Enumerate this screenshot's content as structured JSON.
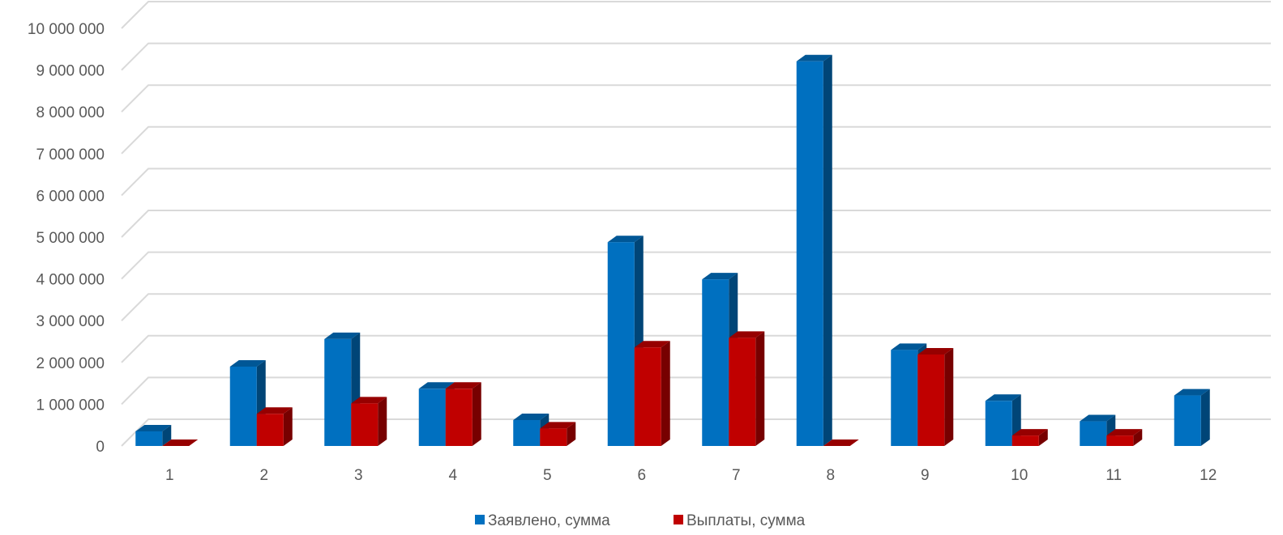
{
  "chart_data": {
    "type": "bar",
    "style": "3d-clustered-column",
    "categories": [
      "1",
      "2",
      "3",
      "4",
      "5",
      "6",
      "7",
      "8",
      "9",
      "10",
      "11",
      "12"
    ],
    "series": [
      {
        "name": "Заявлено, сумма",
        "color": "#0070C0",
        "values": [
          350000,
          1900000,
          2560000,
          1370000,
          620000,
          4880000,
          3990000,
          9210000,
          2300000,
          1080000,
          590000,
          1210000
        ]
      },
      {
        "name": "Выплаты, сумма",
        "color": "#C00000",
        "values": [
          0,
          770000,
          1020000,
          1370000,
          420000,
          2360000,
          2590000,
          0,
          2190000,
          250000,
          250000,
          null
        ]
      }
    ],
    "y_ticks": [
      "0",
      "1 000 000",
      "2 000 000",
      "3 000 000",
      "4 000 000",
      "5 000 000",
      "6 000 000",
      "7 000 000",
      "8 000 000",
      "9 000 000",
      "10 000 000"
    ],
    "ylim": [
      0,
      10000000
    ],
    "grid": true,
    "legend_position": "bottom"
  }
}
